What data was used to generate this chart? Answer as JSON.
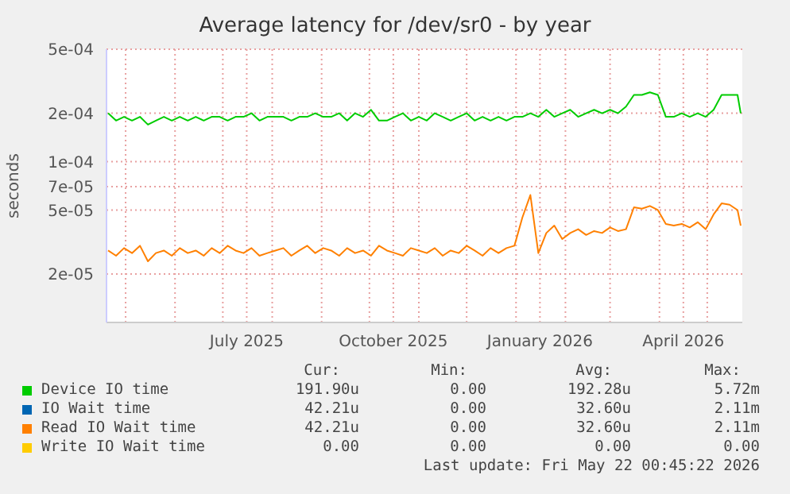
{
  "chart_data": {
    "type": "line",
    "title": "Average latency for /dev/sr0 - by year",
    "ylabel": "seconds",
    "log": "y",
    "grid": true,
    "legend": "bottom",
    "marker": "none",
    "line_style": "solid",
    "xlim": [
      "2025-04-19",
      "2026-05-23"
    ],
    "xticks": [
      {
        "value": "2025-05-01",
        "label": null
      },
      {
        "value": "2025-06-01",
        "label": null
      },
      {
        "value": "2025-07-01",
        "label": null
      },
      {
        "value": "2025-07-16",
        "label": "July 2025"
      },
      {
        "value": "2025-08-01",
        "label": null
      },
      {
        "value": "2025-09-01",
        "label": null
      },
      {
        "value": "2025-10-01",
        "label": null
      },
      {
        "value": "2025-10-16",
        "label": "October 2025"
      },
      {
        "value": "2025-11-01",
        "label": null
      },
      {
        "value": "2025-12-01",
        "label": null
      },
      {
        "value": "2026-01-01",
        "label": null
      },
      {
        "value": "2026-01-16",
        "label": "January 2026"
      },
      {
        "value": "2026-02-01",
        "label": null
      },
      {
        "value": "2026-03-01",
        "label": null
      },
      {
        "value": "2026-04-01",
        "label": null
      },
      {
        "value": "2026-04-16",
        "label": "April 2026"
      },
      {
        "value": "2026-05-01",
        "label": null
      }
    ],
    "ylim": [
      1e-05,
      0.0005
    ],
    "yticks": [
      {
        "value": 2e-05,
        "label": "2e-05"
      },
      {
        "value": 5e-05,
        "label": "5e-05"
      },
      {
        "value": 7e-05,
        "label": "7e-05"
      },
      {
        "value": 0.0001,
        "label": "1e-04"
      },
      {
        "value": 0.0002,
        "label": "2e-04"
      },
      {
        "value": 0.0005,
        "label": "5e-04"
      }
    ],
    "x": [
      "2025-04-20",
      "2025-04-25",
      "2025-04-30",
      "2025-05-05",
      "2025-05-10",
      "2025-05-15",
      "2025-05-20",
      "2025-05-25",
      "2025-05-30",
      "2025-06-04",
      "2025-06-09",
      "2025-06-14",
      "2025-06-19",
      "2025-06-24",
      "2025-06-29",
      "2025-07-04",
      "2025-07-09",
      "2025-07-14",
      "2025-07-19",
      "2025-07-24",
      "2025-07-29",
      "2025-08-03",
      "2025-08-08",
      "2025-08-13",
      "2025-08-18",
      "2025-08-23",
      "2025-08-28",
      "2025-09-02",
      "2025-09-07",
      "2025-09-12",
      "2025-09-17",
      "2025-09-22",
      "2025-09-27",
      "2025-10-02",
      "2025-10-07",
      "2025-10-12",
      "2025-10-17",
      "2025-10-22",
      "2025-10-27",
      "2025-11-01",
      "2025-11-06",
      "2025-11-11",
      "2025-11-16",
      "2025-11-21",
      "2025-11-26",
      "2025-12-01",
      "2025-12-06",
      "2025-12-11",
      "2025-12-16",
      "2025-12-21",
      "2025-12-26",
      "2025-12-31",
      "2026-01-05",
      "2026-01-10",
      "2026-01-15",
      "2026-01-20",
      "2026-01-25",
      "2026-01-30",
      "2026-02-04",
      "2026-02-09",
      "2026-02-14",
      "2026-02-19",
      "2026-02-24",
      "2026-03-01",
      "2026-03-06",
      "2026-03-11",
      "2026-03-16",
      "2026-03-21",
      "2026-03-26",
      "2026-03-31",
      "2026-04-05",
      "2026-04-10",
      "2026-04-15",
      "2026-04-20",
      "2026-04-25",
      "2026-04-30",
      "2026-05-05",
      "2026-05-10",
      "2026-05-15",
      "2026-05-20",
      "2026-05-22"
    ],
    "series": [
      {
        "name": "Device IO time",
        "color": "#00cc00",
        "values": [
          0.0002,
          0.00018,
          0.00019,
          0.00018,
          0.00019,
          0.00017,
          0.00018,
          0.00019,
          0.00018,
          0.00019,
          0.00018,
          0.00019,
          0.00018,
          0.00019,
          0.00019,
          0.00018,
          0.00019,
          0.00019,
          0.0002,
          0.00018,
          0.00019,
          0.00019,
          0.00019,
          0.00018,
          0.00019,
          0.00019,
          0.0002,
          0.00019,
          0.00019,
          0.0002,
          0.00018,
          0.0002,
          0.00019,
          0.00021,
          0.00018,
          0.00018,
          0.00019,
          0.0002,
          0.00018,
          0.00019,
          0.00018,
          0.0002,
          0.00019,
          0.00018,
          0.00019,
          0.0002,
          0.00018,
          0.00019,
          0.00018,
          0.00019,
          0.00018,
          0.00019,
          0.00019,
          0.0002,
          0.00019,
          0.00021,
          0.00019,
          0.0002,
          0.00021,
          0.00019,
          0.0002,
          0.00021,
          0.0002,
          0.00021,
          0.0002,
          0.00022,
          0.00026,
          0.00026,
          0.00027,
          0.00026,
          0.00019,
          0.00019,
          0.0002,
          0.00019,
          0.0002,
          0.00019,
          0.00021,
          0.00026,
          0.00026,
          0.00026,
          0.0002
        ]
      },
      {
        "name": "IO Wait time",
        "color": "#0066b3",
        "values": [
          null,
          null,
          null,
          null,
          null,
          null,
          null,
          null,
          null,
          null,
          null,
          null,
          null,
          null,
          null,
          null,
          null,
          null,
          null,
          null,
          null,
          null,
          null,
          null,
          null,
          null,
          null,
          null,
          null,
          null,
          null,
          null,
          null,
          null,
          null,
          null,
          null,
          null,
          null,
          null,
          null,
          null,
          null,
          null,
          null,
          null,
          null,
          null,
          null,
          null,
          null,
          null,
          null,
          null,
          null,
          null,
          null,
          null,
          null,
          null,
          null,
          null,
          null,
          null,
          null,
          null,
          null,
          null,
          null,
          null,
          null,
          null,
          null,
          null,
          null,
          null,
          null,
          null,
          null,
          null,
          null
        ]
      },
      {
        "name": "Read IO Wait time",
        "color": "#ff8000",
        "values": [
          2.8e-05,
          2.6e-05,
          2.9e-05,
          2.7e-05,
          3e-05,
          2.4e-05,
          2.7e-05,
          2.8e-05,
          2.6e-05,
          2.9e-05,
          2.7e-05,
          2.8e-05,
          2.6e-05,
          2.9e-05,
          2.7e-05,
          3e-05,
          2.8e-05,
          2.7e-05,
          2.9e-05,
          2.6e-05,
          2.7e-05,
          2.8e-05,
          2.9e-05,
          2.6e-05,
          2.8e-05,
          3e-05,
          2.7e-05,
          2.9e-05,
          2.8e-05,
          2.6e-05,
          2.9e-05,
          2.7e-05,
          2.8e-05,
          2.6e-05,
          3e-05,
          2.8e-05,
          2.7e-05,
          2.6e-05,
          2.9e-05,
          2.8e-05,
          2.7e-05,
          2.9e-05,
          2.6e-05,
          2.8e-05,
          2.7e-05,
          3e-05,
          2.8e-05,
          2.6e-05,
          2.9e-05,
          2.7e-05,
          2.9e-05,
          3e-05,
          4.5e-05,
          6.2e-05,
          2.7e-05,
          3.6e-05,
          4e-05,
          3.3e-05,
          3.6e-05,
          3.8e-05,
          3.5e-05,
          3.7e-05,
          3.6e-05,
          3.9e-05,
          3.7e-05,
          3.8e-05,
          5.2e-05,
          5.1e-05,
          5.3e-05,
          5e-05,
          4.1e-05,
          4e-05,
          4.1e-05,
          3.9e-05,
          4.2e-05,
          3.8e-05,
          4.7e-05,
          5.5e-05,
          5.4e-05,
          5e-05,
          4e-05
        ]
      },
      {
        "name": "Write IO Wait time",
        "color": "#ffcc00",
        "values": [
          null,
          null,
          null,
          null,
          null,
          null,
          null,
          null,
          null,
          null,
          null,
          null,
          null,
          null,
          null,
          null,
          null,
          null,
          null,
          null,
          null,
          null,
          null,
          null,
          null,
          null,
          null,
          null,
          null,
          null,
          null,
          null,
          null,
          null,
          null,
          null,
          null,
          null,
          null,
          null,
          null,
          null,
          null,
          null,
          null,
          null,
          null,
          null,
          null,
          null,
          null,
          null,
          null,
          null,
          null,
          null,
          null,
          null,
          null,
          null,
          null,
          null,
          null,
          null,
          null,
          null,
          null,
          null,
          null,
          null,
          null,
          null,
          null,
          null,
          null,
          null,
          null,
          null,
          null,
          null,
          null
        ]
      }
    ],
    "annotations": [
      "Cur:",
      "Min:",
      "Avg:",
      "Max:",
      "191.90u",
      "0.00",
      "192.28u",
      "5.72m",
      "42.21u",
      "0.00",
      "32.60u",
      "2.11m",
      "42.21u",
      "0.00",
      "32.60u",
      "2.11m",
      "0.00",
      "0.00",
      "0.00",
      "0.00",
      "Last update: Fri May 22 00:45:22 2026"
    ]
  }
}
